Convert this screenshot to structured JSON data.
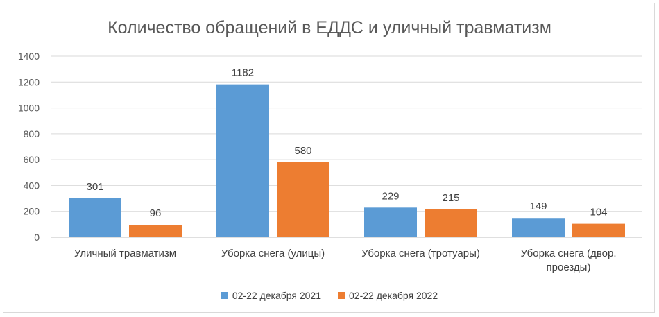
{
  "chart_data": {
    "type": "bar",
    "title": "Количество обращений в ЕДДС и уличный травматизм",
    "categories": [
      [
        "Уличный травматизм"
      ],
      [
        "Уборка снега (улицы)"
      ],
      [
        "Уборка снега (тротуары)"
      ],
      [
        "Уборка снега (двор.",
        "проезды)"
      ]
    ],
    "series": [
      {
        "name": "02-22 декабря 2021",
        "color": "#5b9bd5",
        "values": [
          301,
          1182,
          229,
          149
        ]
      },
      {
        "name": "02-22 декабря 2022",
        "color": "#ed7d31",
        "values": [
          96,
          580,
          215,
          104
        ]
      }
    ],
    "ylim": [
      0,
      1400
    ],
    "yticks": [
      0,
      200,
      400,
      600,
      800,
      1000,
      1200,
      1400
    ],
    "grid": true,
    "legend_position": "bottom"
  }
}
